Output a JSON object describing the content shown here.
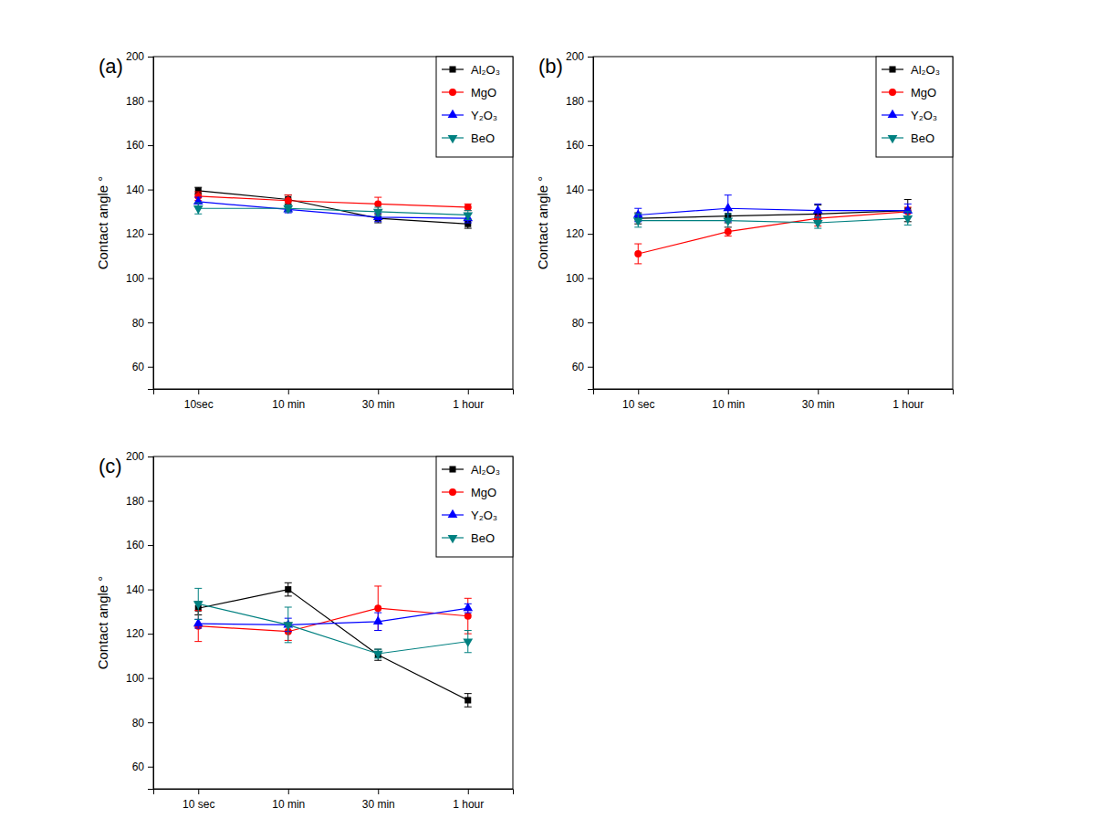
{
  "chart_data": [
    {
      "type": "line",
      "title": "(a)",
      "y_label": "Contact angle °",
      "categories": [
        "10sec",
        "10 min",
        "30 min",
        "1 hour"
      ],
      "ylim": [
        50,
        200
      ],
      "yticks": [
        60,
        80,
        100,
        120,
        140,
        160,
        180,
        200
      ],
      "legend": "upper right",
      "series": [
        {
          "name": "Al₂O₃",
          "color": "#000000",
          "marker": "square",
          "values": [
            139.5,
            135.5,
            127,
            124.5
          ],
          "errors": [
            1.5,
            2,
            2,
            2
          ]
        },
        {
          "name": "MgO",
          "color": "#ff0000",
          "marker": "circle",
          "values": [
            137,
            135,
            133.5,
            132
          ],
          "errors": [
            2,
            2.5,
            3,
            1.5
          ]
        },
        {
          "name": "Y₂O₃",
          "color": "#0000ff",
          "marker": "triangle-up",
          "values": [
            134.5,
            131,
            127.5,
            127
          ],
          "errors": [
            2,
            1.5,
            2,
            2
          ]
        },
        {
          "name": "BeO",
          "color": "#008080",
          "marker": "triangle-down",
          "values": [
            131.5,
            131.5,
            130,
            128.5
          ],
          "errors": [
            2.5,
            1.5,
            2,
            2
          ]
        }
      ]
    },
    {
      "type": "line",
      "title": "(b)",
      "y_label": "Contact angle °",
      "categories": [
        "10 sec",
        "10 min",
        "30 min",
        "1 hour"
      ],
      "ylim": [
        50,
        200
      ],
      "yticks": [
        60,
        80,
        100,
        120,
        140,
        160,
        180,
        200
      ],
      "legend": "upper right",
      "series": [
        {
          "name": "Al₂O₃",
          "color": "#000000",
          "marker": "square",
          "values": [
            127,
            128,
            129,
            130.5
          ],
          "errors": [
            2.5,
            3,
            4,
            5
          ]
        },
        {
          "name": "MgO",
          "color": "#ff0000",
          "marker": "circle",
          "values": [
            111,
            121,
            127,
            130
          ],
          "errors": [
            4.5,
            2,
            3.5,
            2
          ]
        },
        {
          "name": "Y₂O₃",
          "color": "#0000ff",
          "marker": "triangle-up",
          "values": [
            128.5,
            131.5,
            130.5,
            130.5
          ],
          "errors": [
            3,
            6,
            3,
            3
          ]
        },
        {
          "name": "BeO",
          "color": "#008080",
          "marker": "triangle-down",
          "values": [
            126,
            126,
            125,
            127
          ],
          "errors": [
            3,
            3,
            2.5,
            3
          ]
        }
      ]
    },
    {
      "type": "line",
      "title": "(c)",
      "y_label": "Contact angle °",
      "categories": [
        "10 sec",
        "10 min",
        "30 min",
        "1 hour"
      ],
      "ylim": [
        50,
        200
      ],
      "yticks": [
        60,
        80,
        100,
        120,
        140,
        160,
        180,
        200
      ],
      "legend": "upper right",
      "series": [
        {
          "name": "Al₂O₃",
          "color": "#000000",
          "marker": "square",
          "values": [
            131.5,
            140,
            110.5,
            90
          ],
          "errors": [
            3,
            3,
            2.5,
            3
          ]
        },
        {
          "name": "MgO",
          "color": "#ff0000",
          "marker": "circle",
          "values": [
            123.5,
            121,
            131.5,
            128
          ],
          "errors": [
            7,
            4,
            10,
            8
          ]
        },
        {
          "name": "Y₂O₃",
          "color": "#0000ff",
          "marker": "triangle-up",
          "values": [
            124.5,
            124,
            125.5,
            131.5
          ],
          "errors": [
            2,
            3,
            4,
            2
          ]
        },
        {
          "name": "BeO",
          "color": "#008080",
          "marker": "triangle-down",
          "values": [
            133.5,
            124,
            111,
            116.5
          ],
          "errors": [
            7,
            8,
            2,
            5
          ]
        }
      ]
    }
  ]
}
